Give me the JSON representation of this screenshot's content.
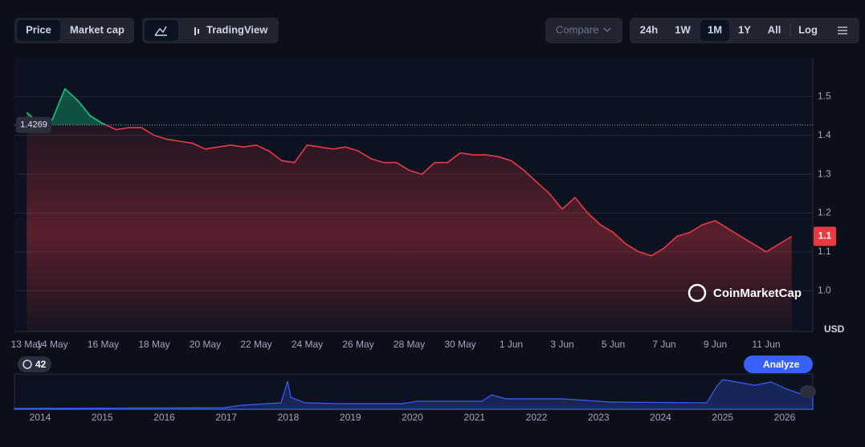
{
  "ui": {
    "tabs": [
      "Price",
      "Market cap"
    ],
    "view": "TradingView",
    "compare": "Compare",
    "ranges": [
      "24h",
      "1W",
      "1M",
      "1Y",
      "All"
    ],
    "log": "Log",
    "currency": "USD",
    "brand": "CoinMarketCap",
    "badge": "42",
    "analyze": "Analyze",
    "years": [
      "2014",
      "2015",
      "2016",
      "2017",
      "2018",
      "2019",
      "2020",
      "2021",
      "2022",
      "2023",
      "2024",
      "2025",
      "2026"
    ]
  },
  "chart_data": {
    "type": "line",
    "categories": [
      "13 May",
      null,
      "14 May",
      null,
      null,
      null,
      "16 May",
      null,
      null,
      null,
      "18 May",
      null,
      null,
      null,
      "20 May",
      null,
      null,
      null,
      "22 May",
      null,
      null,
      null,
      "24 May",
      null,
      null,
      null,
      "26 May",
      null,
      null,
      null,
      "28 May",
      null,
      null,
      null,
      "30 May",
      null,
      null,
      null,
      "1 Jun",
      null,
      null,
      null,
      "3 Jun",
      null,
      null,
      null,
      "5 Jun",
      null,
      null,
      null,
      "7 Jun",
      null,
      null,
      null,
      "9 Jun",
      null,
      null,
      null,
      "11 Jun",
      null,
      null
    ],
    "series": [
      {
        "name": "Price",
        "color": "#ea3943",
        "values": [
          1.459,
          1.43,
          1.44,
          1.52,
          1.49,
          1.45,
          1.43,
          1.415,
          1.42,
          1.42,
          1.4,
          1.39,
          1.385,
          1.38,
          1.365,
          1.37,
          1.375,
          1.37,
          1.375,
          1.36,
          1.335,
          1.33,
          1.375,
          1.37,
          1.365,
          1.37,
          1.36,
          1.34,
          1.33,
          1.33,
          1.31,
          1.3,
          1.33,
          1.33,
          1.355,
          1.35,
          1.35,
          1.345,
          1.335,
          1.31,
          1.28,
          1.25,
          1.21,
          1.24,
          1.2,
          1.17,
          1.15,
          1.12,
          1.1,
          1.09,
          1.11,
          1.14,
          1.15,
          1.17,
          1.18,
          1.16,
          1.14,
          1.12,
          1.1,
          1.12,
          1.14
        ]
      }
    ],
    "up_color": "#16c784",
    "reference": 1.4269,
    "price_tag": "1.1",
    "ylim": [
      0.895,
      1.6
    ],
    "yticks": [
      {
        "value": 1,
        "label": "1.0"
      },
      1.1,
      1.2,
      1.3,
      1.4,
      1.5
    ]
  }
}
